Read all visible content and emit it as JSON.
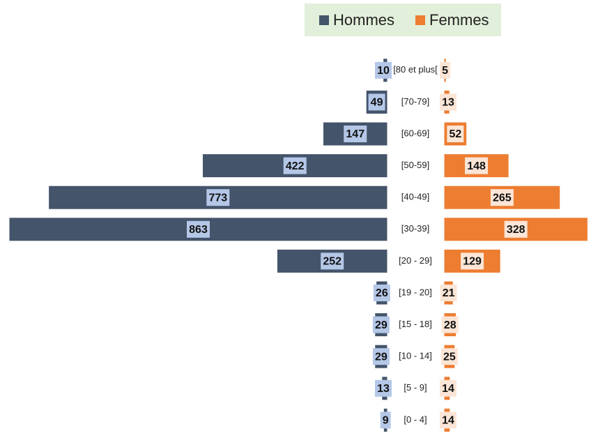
{
  "chart_data": {
    "type": "pyramid",
    "categories": [
      "[80 et plus[",
      "[70-79]",
      "[60-69]",
      "[50-59]",
      "[40-49]",
      "[30-39]",
      "[20 - 29]",
      "[19 - 20]",
      "[15 - 18]",
      "[10 - 14]",
      "[5 - 9]",
      "[0 - 4]"
    ],
    "series": [
      {
        "name": "Hommes",
        "color": "#44546a",
        "label_color": "#b4c7e7",
        "values": [
          10,
          49,
          147,
          422,
          773,
          863,
          252,
          26,
          29,
          29,
          13,
          9
        ]
      },
      {
        "name": "Femmes",
        "color": "#ed7d31",
        "label_color": "#fbe5d6",
        "values": [
          5,
          13,
          52,
          148,
          265,
          328,
          129,
          21,
          28,
          25,
          14,
          14
        ]
      }
    ],
    "xlim": [
      0,
      863
    ],
    "legend": "top"
  }
}
